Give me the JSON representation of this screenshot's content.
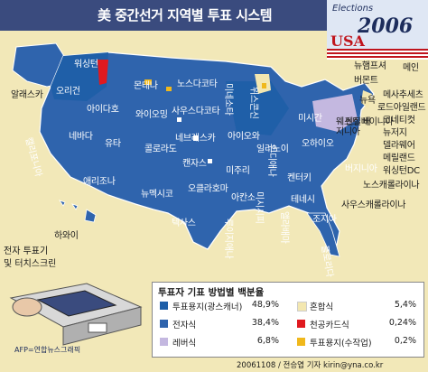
{
  "title": "美 중간선거 지역별 투표 시스템",
  "badge": {
    "elections": "Elections",
    "year": "2006",
    "country": "USA"
  },
  "states": {
    "alaska": "알래스카",
    "hawaii": "하와이",
    "washington": "워싱턴",
    "oregon": "오리건",
    "california": "캘리포니아",
    "nevada": "네바다",
    "idaho": "아이다호",
    "montana": "몬태나",
    "wyoming": "와이오밍",
    "utah": "유타",
    "arizona": "애리조나",
    "colorado": "콜로라도",
    "new_mexico": "뉴멕시코",
    "north_dakota": "노스다코타",
    "south_dakota": "사우스다코타",
    "nebraska": "네브래스카",
    "kansas": "캔자스",
    "oklahoma": "오클라호마",
    "texas": "텍사스",
    "minnesota": "미네소타",
    "iowa": "아이오와",
    "missouri": "미주리",
    "arkansas": "아칸소",
    "louisiana": "루이지애나",
    "wisconsin": "위스콘신",
    "illinois": "일리노이",
    "mississippi": "미시시피",
    "michigan": "미시간",
    "indiana": "인디애나",
    "kentucky": "켄터키",
    "tennessee": "테네시",
    "alabama": "앨라배마",
    "georgia": "조지아",
    "florida": "플로리다",
    "ohio": "오하이오",
    "west_virginia": "웨스트 버지니아",
    "virginia": "버지니아",
    "north_carolina": "노스캐롤라이나",
    "south_carolina": "사우스캐롤라이나",
    "pennsylvania": "펜실베이니아",
    "new_york": "뉴욕",
    "vermont": "버몬트",
    "new_hampshire": "뉴햄프셔",
    "maine": "메인",
    "massachusetts": "메사추세츠",
    "rhode_island": "로드아일랜드",
    "connecticut": "코네티컷",
    "new_jersey": "뉴저지",
    "delaware": "델라웨어",
    "maryland": "메릴랜드",
    "washington_dc": "워싱턴DC"
  },
  "machine_label": [
    "전자 투표기",
    "및 터치스크린"
  ],
  "legend": {
    "title": "투표자 기표 방법별 백분율",
    "items": [
      {
        "label": "투표용지(광스캐너)",
        "value": "48,9%",
        "color": "#1f5fa8"
      },
      {
        "label": "혼합식",
        "value": "5,4%",
        "color": "#f3e7b0"
      },
      {
        "label": "전자식",
        "value": "38,4%",
        "color": "#2f64ad"
      },
      {
        "label": "천공카드식",
        "value": "0,24%",
        "color": "#e0191f"
      },
      {
        "label": "레버식",
        "value": "6,8%",
        "color": "#c4b8e0"
      },
      {
        "label": "투표용지(수작업)",
        "value": "0,2%",
        "color": "#f0b81c"
      }
    ]
  },
  "credit": "AFP=연합뉴스그래픽",
  "byline": "20061108 / 전승엽 기자 kirin@yna.co.kr",
  "colors": {
    "optical": "#1f5fa8",
    "electronic": "#2f64ad",
    "lever": "#c4b8e0",
    "mixed": "#f3e7b0",
    "punch": "#e0191f",
    "paper": "#f0b81c",
    "background": "#f2e8b8",
    "title_bar": "#3a4b7e"
  }
}
